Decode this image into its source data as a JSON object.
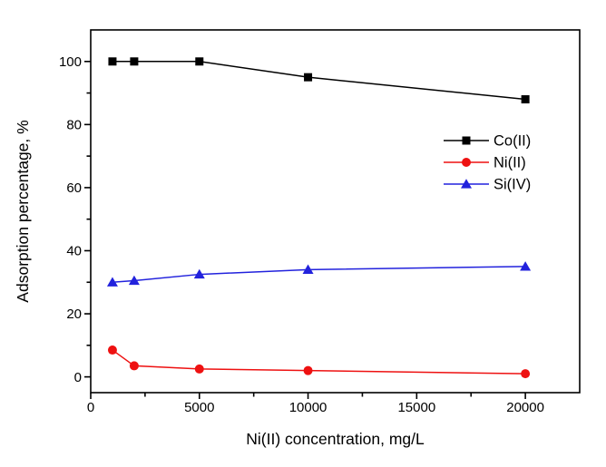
{
  "figure": {
    "background": "#ffffff",
    "axis_color": "#000000"
  },
  "chart_data": {
    "type": "line",
    "title": "",
    "xlabel": "Ni(II) concentration, mg/L",
    "ylabel": "Adsorption percentage, %",
    "x": [
      1000,
      2000,
      5000,
      10000,
      20000
    ],
    "series": [
      {
        "name": "Co(II)",
        "color": "#000000",
        "marker": "square",
        "values": [
          100,
          100,
          100,
          95,
          88
        ]
      },
      {
        "name": "Ni(II)",
        "color": "#ee1111",
        "marker": "circle",
        "values": [
          8.5,
          3.5,
          2.5,
          2,
          1
        ]
      },
      {
        "name": "Si(IV)",
        "color": "#2222dd",
        "marker": "triangle",
        "values": [
          30,
          30.5,
          32.5,
          34,
          35
        ]
      }
    ],
    "xlim": [
      0,
      22500
    ],
    "ylim": [
      -5,
      110
    ],
    "xticks": {
      "major": [
        0,
        5000,
        10000,
        15000,
        20000
      ],
      "labels": [
        "0",
        "5000",
        "10000",
        "15000",
        "20000"
      ],
      "minor": [
        2500,
        7500,
        12500,
        17500
      ]
    },
    "yticks": {
      "major": [
        0,
        20,
        40,
        60,
        80,
        100
      ],
      "labels": [
        "0",
        "20",
        "40",
        "60",
        "80",
        "100"
      ],
      "minor": [
        10,
        30,
        50,
        70,
        90
      ]
    },
    "grid": false,
    "legend": {
      "position": "right-center",
      "entries": [
        "Co(II)",
        "Ni(II)",
        "Si(IV)"
      ]
    }
  }
}
